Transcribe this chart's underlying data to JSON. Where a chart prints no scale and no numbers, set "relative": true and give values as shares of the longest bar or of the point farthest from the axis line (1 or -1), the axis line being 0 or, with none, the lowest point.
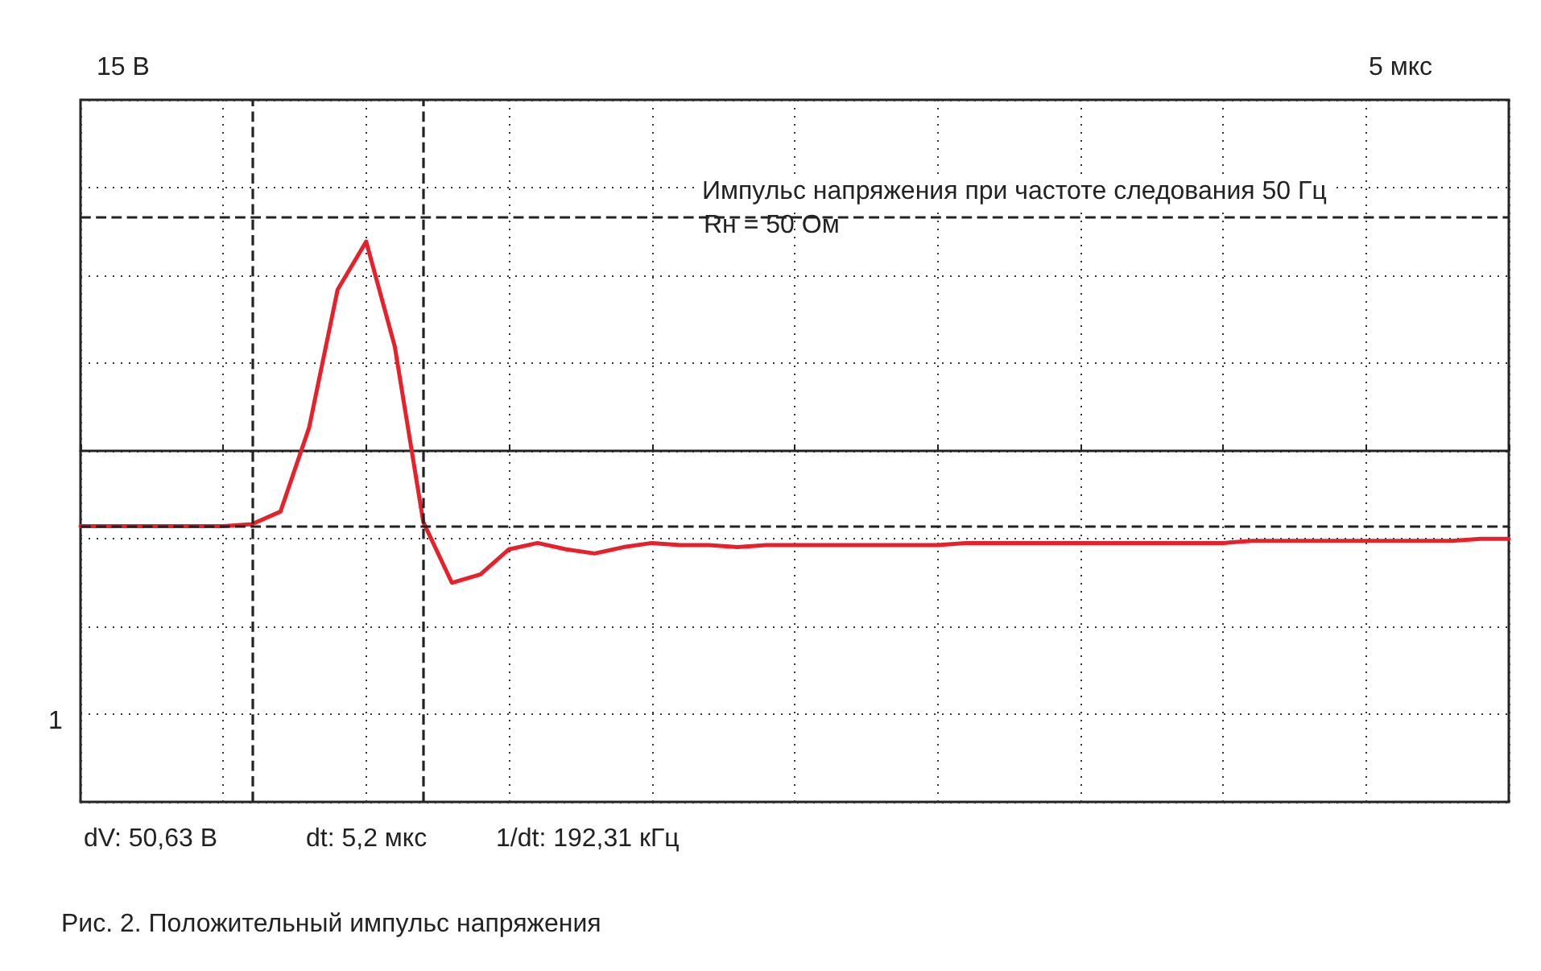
{
  "chart_data": {
    "type": "line",
    "relative": true,
    "title": "Рис. 2. Положительный импульс напряжения",
    "annotations": [
      "15 В",
      "5 мкс",
      "Импульс напряжения при частоте следования 50 Гц",
      "Rн = 50 Ом",
      "1",
      "dV: 50,63 В",
      "dt: 5,2 мкс",
      "1/dt: 192,31 кГц"
    ],
    "categories": [
      null,
      null,
      null,
      null,
      null,
      null,
      null,
      null,
      null,
      null,
      null,
      null,
      null,
      null,
      null,
      null,
      null,
      null,
      null,
      null,
      null,
      null,
      null,
      null,
      null,
      null,
      null,
      null,
      null,
      null,
      null,
      null,
      null,
      null,
      null,
      null,
      null,
      null,
      null,
      null,
      null,
      null,
      null,
      null,
      null,
      null,
      null,
      null,
      null,
      null,
      null
    ],
    "series": [
      {
        "color": "#e8202a",
        "values": [
          -0.36,
          -0.36,
          -0.36,
          -0.36,
          -0.36,
          -0.36,
          -0.35,
          -0.29,
          0.11,
          0.77,
          1,
          0.5,
          -0.34,
          -0.63,
          -0.59,
          -0.47,
          -0.44,
          -0.47,
          -0.49,
          -0.46,
          -0.44,
          -0.45,
          -0.45,
          -0.46,
          -0.45,
          -0.45,
          -0.45,
          -0.45,
          -0.45,
          -0.45,
          -0.45,
          -0.44,
          -0.44,
          -0.44,
          -0.44,
          -0.44,
          -0.44,
          -0.44,
          -0.44,
          -0.44,
          -0.44,
          -0.43,
          -0.43,
          -0.43,
          -0.43,
          -0.43,
          -0.43,
          -0.43,
          -0.43,
          -0.42,
          -0.42
        ]
      }
    ],
    "grid": true,
    "marker": "none",
    "line_style": "solid",
    "ref_lines": [
      {
        "axis": "y",
        "value": 1.12,
        "line_style": "dashed"
      },
      {
        "axis": "y",
        "value": -0.36,
        "line_style": "dashed"
      }
    ]
  }
}
